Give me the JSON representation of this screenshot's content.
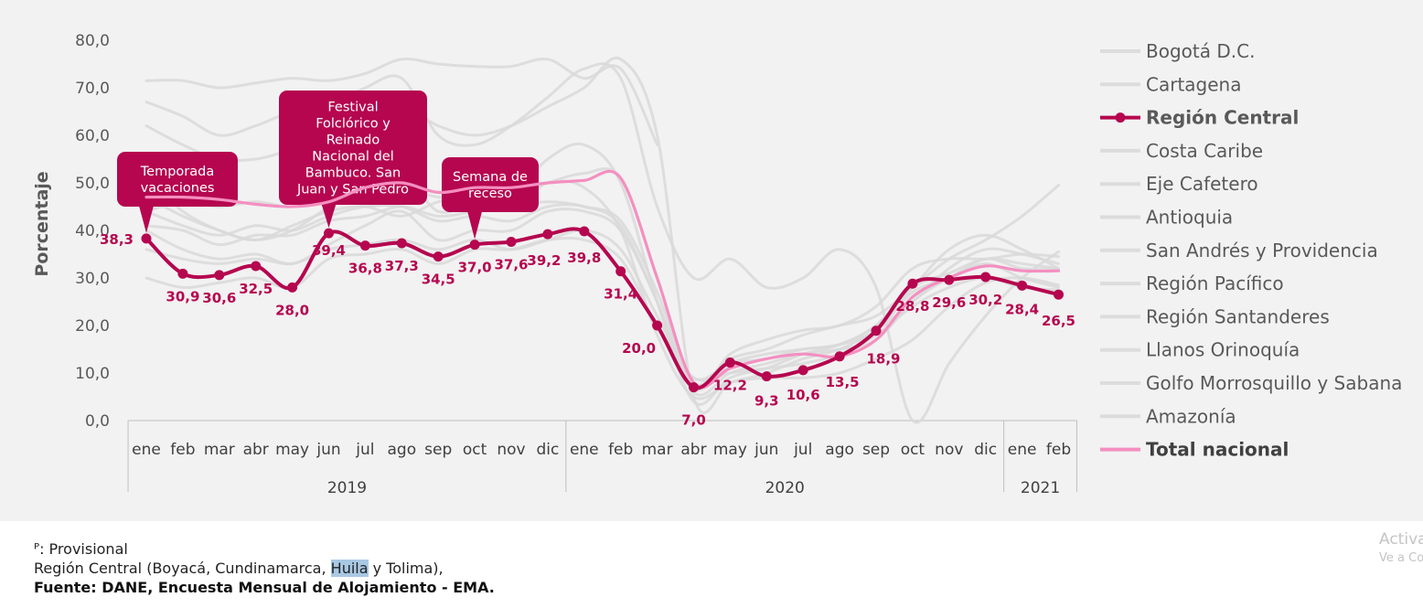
{
  "chart_data": {
    "type": "line",
    "ylabel": "Porcentaje",
    "ylim": [
      0,
      80
    ],
    "yticks": [
      "0,0",
      "10,0",
      "20,0",
      "30,0",
      "40,0",
      "50,0",
      "60,0",
      "70,0",
      "80,0"
    ],
    "categories": [
      "ene",
      "feb",
      "mar",
      "abr",
      "may",
      "jun",
      "jul",
      "ago",
      "sep",
      "oct",
      "nov",
      "dic",
      "ene",
      "feb",
      "mar",
      "abr",
      "may",
      "jun",
      "jul",
      "ago",
      "sep",
      "oct",
      "nov",
      "dic",
      "ene",
      "feb"
    ],
    "years": [
      {
        "label": "2019",
        "start": 0,
        "end": 11
      },
      {
        "label": "2020",
        "start": 12,
        "end": 23
      },
      {
        "label": "2021",
        "start": 24,
        "end": 25
      }
    ],
    "highlight_series": {
      "name": "Región Central",
      "color": "#b5064f",
      "values": [
        38.3,
        30.9,
        30.6,
        32.5,
        28.0,
        39.4,
        36.8,
        37.3,
        34.5,
        37.0,
        37.6,
        39.2,
        39.8,
        31.4,
        20.0,
        7.0,
        12.2,
        9.3,
        10.6,
        13.5,
        18.9,
        28.8,
        29.6,
        30.2,
        28.4,
        26.5
      ],
      "labels": [
        "38,3",
        "30,9",
        "30,6",
        "32,5",
        "28,0",
        "39,4",
        "36,8",
        "37,3",
        "34,5",
        "37,0",
        "37,6",
        "39,2",
        "39,8",
        "31,4",
        "20,0",
        "7,0",
        "12,2",
        "9,3",
        "10,6",
        "13,5",
        "18,9",
        "28,8",
        "29,6",
        "30,2",
        "28,4",
        "26,5"
      ]
    },
    "national_series": {
      "name": "Total nacional",
      "color": "#f48fc0",
      "values": [
        47,
        47,
        46.5,
        45.5,
        45,
        46,
        49,
        50,
        48,
        49,
        49,
        50,
        50.5,
        51,
        30,
        8,
        11,
        13,
        14,
        13.5,
        17,
        26,
        30,
        32.5,
        31.5,
        31.5
      ]
    },
    "background_series": [
      {
        "name": "Bogotá D.C.",
        "values": [
          47,
          43,
          40,
          38,
          41,
          44,
          45,
          43,
          46,
          47,
          45,
          50,
          49,
          40,
          18,
          5,
          8,
          9,
          9,
          10,
          13,
          17,
          24,
          29,
          30,
          28.5
        ]
      },
      {
        "name": "Cartagena",
        "values": [
          71.5,
          71.5,
          70,
          71,
          72,
          71.5,
          73,
          76,
          75,
          74.5,
          74.5,
          76,
          72,
          74,
          58,
          null,
          null,
          null,
          null,
          null,
          null,
          null,
          null,
          null,
          null,
          null
        ]
      },
      {
        "name": "Costa Caribe",
        "values": [
          62,
          58,
          55,
          55,
          57,
          59,
          64,
          66,
          62,
          60,
          62,
          66,
          70,
          76,
          60,
          5,
          8,
          10,
          13,
          15,
          19,
          25,
          32,
          36,
          35,
          33
        ]
      },
      {
        "name": "Eje Cafetero",
        "values": [
          41,
          40,
          37,
          39,
          39,
          42,
          43,
          45,
          43,
          44,
          45,
          46,
          45,
          42,
          27,
          8,
          13,
          15,
          18,
          20,
          22,
          28,
          34,
          38,
          43,
          49.5
        ]
      },
      {
        "name": "Antioquia",
        "values": [
          44,
          46,
          45,
          46,
          45,
          47,
          48,
          49,
          47,
          47,
          47,
          50,
          52,
          51,
          30,
          7,
          14,
          17,
          19,
          20,
          24,
          32,
          34,
          34,
          35,
          34.5
        ]
      },
      {
        "name": "San Andrés y Providencia",
        "values": [
          67,
          64,
          60,
          62,
          65,
          66,
          70,
          72,
          60,
          58,
          62,
          68,
          74,
          72,
          45,
          30,
          34,
          28,
          30,
          36,
          28,
          0,
          12,
          22,
          30,
          35.5
        ]
      },
      {
        "name": "Región Pacífico",
        "values": [
          40,
          36,
          34,
          35,
          33,
          37,
          41,
          44,
          38,
          40,
          40,
          44,
          44,
          40,
          25,
          6,
          10,
          12,
          14,
          15,
          17,
          25,
          30,
          33,
          30,
          28
        ]
      },
      {
        "name": "Región Santanderes",
        "values": [
          44,
          41,
          39,
          41,
          40,
          43,
          45,
          45,
          42,
          43,
          42,
          45,
          45,
          41,
          25,
          7,
          12,
          14,
          15,
          16,
          19,
          27,
          30,
          34,
          32,
          32
        ]
      },
      {
        "name": "Llanos Orinoquía",
        "values": [
          36,
          34,
          33,
          34,
          33,
          36,
          37,
          38,
          36,
          38,
          36,
          38,
          40,
          36,
          22,
          9,
          12,
          13,
          15,
          16,
          20,
          28,
          31,
          34,
          33,
          32
        ]
      },
      {
        "name": "Golfo Morrosquillo y Sabana",
        "values": [
          51,
          44,
          40,
          38,
          40,
          45,
          50,
          52,
          44,
          46,
          47,
          55,
          58,
          50,
          25,
          4,
          9,
          11,
          14,
          16,
          20,
          28,
          36,
          39,
          36,
          32
        ]
      },
      {
        "name": "Amazonía",
        "values": [
          30,
          28,
          29,
          30,
          28,
          34,
          35,
          36,
          33,
          36,
          36,
          38,
          38,
          34,
          20,
          9,
          10,
          11,
          12,
          14,
          18,
          24,
          28,
          30,
          28,
          27.5
        ]
      }
    ],
    "legend": [
      {
        "name": "Bogotá D.C.",
        "style": "grey"
      },
      {
        "name": "Cartagena",
        "style": "grey"
      },
      {
        "name": "Región Central",
        "style": "highlight"
      },
      {
        "name": "Costa Caribe",
        "style": "grey"
      },
      {
        "name": "Eje Cafetero",
        "style": "grey"
      },
      {
        "name": "Antioquia",
        "style": "grey"
      },
      {
        "name": "San Andrés y Providencia",
        "style": "grey"
      },
      {
        "name": "Región Pacífico",
        "style": "grey"
      },
      {
        "name": "Región Santanderes",
        "style": "grey"
      },
      {
        "name": "Llanos Orinoquía",
        "style": "grey"
      },
      {
        "name": "Golfo Morrosquillo y Sabana",
        "style": "grey"
      },
      {
        "name": "Amazonía",
        "style": "grey"
      },
      {
        "name": "Total nacional",
        "style": "national"
      }
    ],
    "annotations": [
      {
        "text": "Temporada vacaciones",
        "lines": [
          "Temporada",
          "vacaciones"
        ],
        "points_to_index": 0
      },
      {
        "text": "Festival Folclórico y Reinado Nacional del Bambuco. San Juan y San Pedro",
        "lines": [
          "Festival",
          "Folclórico y",
          "Reinado",
          "Nacional del",
          "Bambuco. San",
          "Juan y San Pedro"
        ],
        "points_to_index": 5
      },
      {
        "text": "Semana de receso",
        "lines": [
          "Semana de",
          "receso"
        ],
        "points_to_index": 9
      }
    ],
    "background_color": "#f2f2f2"
  },
  "footer": {
    "note1": "ᴾ: Provisional",
    "note2_pre": "Región Central (Boyacá, Cundinamarca, ",
    "note2_hl": "Huila",
    "note2_post": " y Tolima),",
    "source": "Fuente: DANE, Encuesta Mensual de Alojamiento - EMA."
  },
  "watermark": {
    "line1": "Activa",
    "line2": "Ve a Co"
  }
}
